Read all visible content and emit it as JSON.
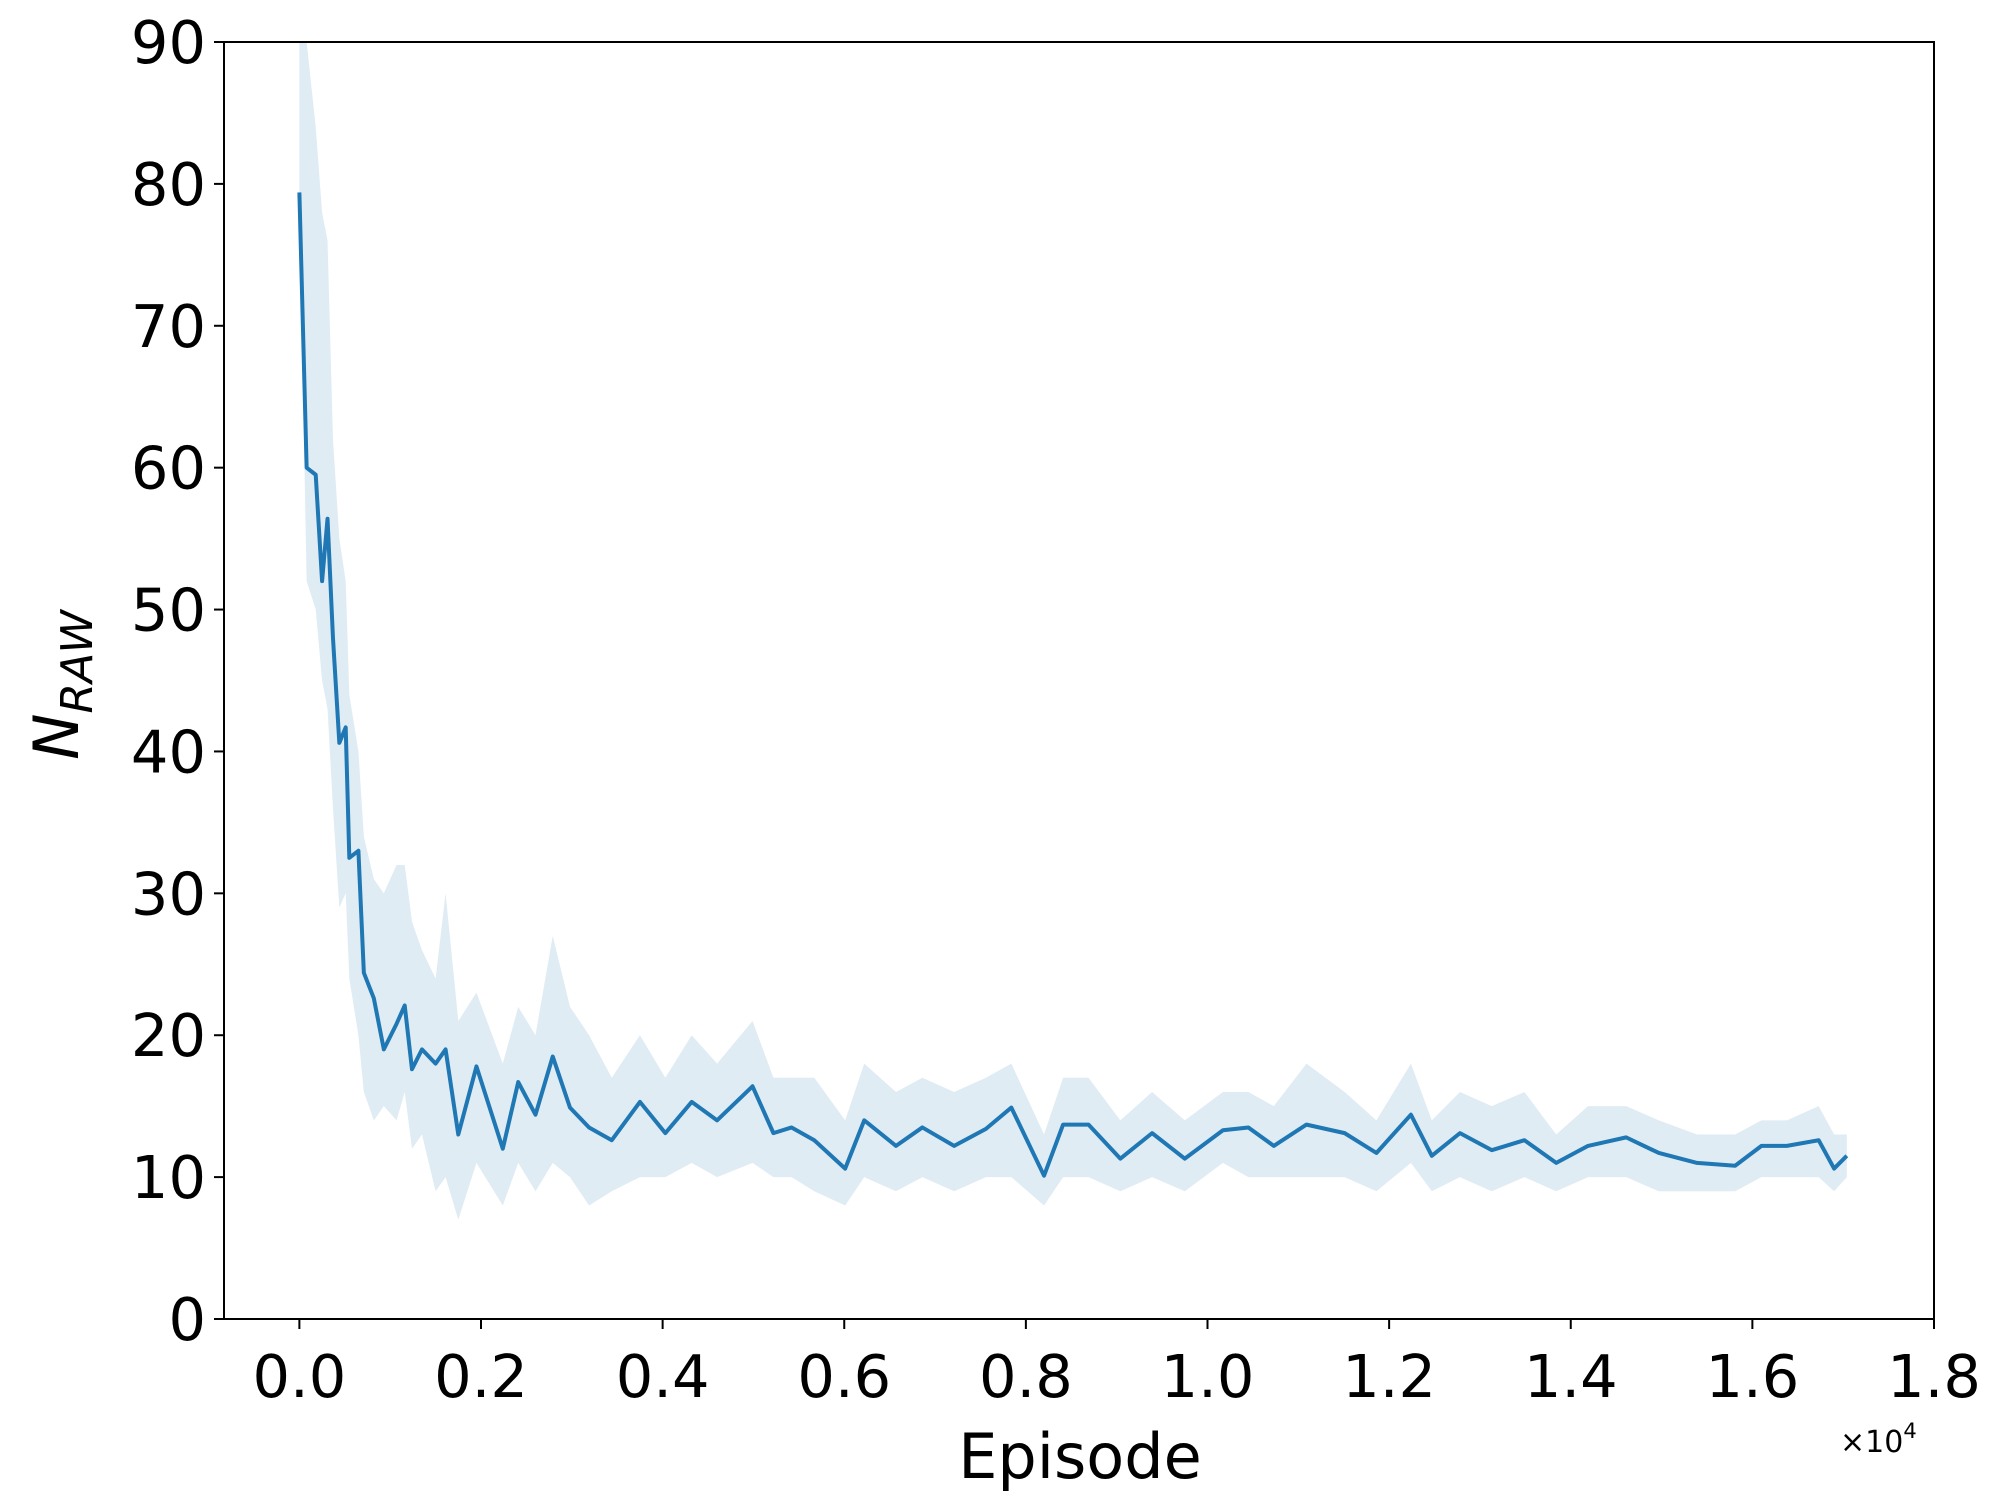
{
  "chart_data": {
    "type": "line",
    "ylabel": "N",
    "ylabel_sub": "RAW",
    "xlabel": "Episode",
    "x_offset": {
      "base": "×10",
      "exp": "4"
    },
    "xlim": [
      -0.083,
      1.8
    ],
    "ylim": [
      0,
      90
    ],
    "xticks": [
      {
        "value": 0,
        "label": "0.0"
      },
      {
        "value": 0.2,
        "label": "0.2"
      },
      {
        "value": 0.4,
        "label": "0.4"
      },
      {
        "value": 0.6,
        "label": "0.6"
      },
      {
        "value": 0.8,
        "label": "0.8"
      },
      {
        "value": 1.0,
        "label": "1.0"
      },
      {
        "value": 1.2,
        "label": "1.2"
      },
      {
        "value": 1.4,
        "label": "1.4"
      },
      {
        "value": 1.6,
        "label": "1.6"
      },
      {
        "value": 1.8,
        "label": "1.8"
      }
    ],
    "yticks": [
      0,
      10,
      20,
      30,
      40,
      50,
      60,
      70,
      80,
      90
    ],
    "x": [
      0,
      0.008,
      0.018,
      0.025,
      0.031,
      0.037,
      0.044,
      0.051,
      0.055,
      0.065,
      0.071,
      0.082,
      0.093,
      0.107,
      0.116,
      0.124,
      0.135,
      0.15,
      0.161,
      0.175,
      0.195,
      0.224,
      0.241,
      0.26,
      0.279,
      0.298,
      0.319,
      0.344,
      0.375,
      0.403,
      0.432,
      0.46,
      0.499,
      0.522,
      0.542,
      0.567,
      0.601,
      0.622,
      0.657,
      0.686,
      0.721,
      0.756,
      0.784,
      0.82,
      0.841,
      0.869,
      0.904,
      0.939,
      0.975,
      1.017,
      1.045,
      1.073,
      1.109,
      1.151,
      1.186,
      1.224,
      1.247,
      1.278,
      1.313,
      1.349,
      1.384,
      1.419,
      1.461,
      1.497,
      1.539,
      1.581,
      1.61,
      1.638,
      1.673,
      1.69,
      1.704
    ],
    "series": [
      {
        "color": "#1f77b4",
        "values": [
          79.4,
          60,
          59.5,
          52,
          56.4,
          48,
          40.6,
          41.7,
          32.5,
          33,
          24.4,
          22.6,
          19,
          20.8,
          22.1,
          17.6,
          19,
          18,
          19,
          13,
          17.8,
          12,
          16.7,
          14.4,
          18.5,
          14.9,
          13.5,
          12.6,
          15.3,
          13.1,
          15.3,
          14,
          16.4,
          13.1,
          13.5,
          12.6,
          10.6,
          14,
          12.2,
          13.5,
          12.2,
          13.4,
          14.9,
          10.1,
          13.7,
          13.7,
          11.3,
          13.1,
          11.3,
          13.3,
          13.5,
          12.2,
          13.7,
          13.1,
          11.7,
          14.4,
          11.5,
          13.1,
          11.9,
          12.6,
          11,
          12.2,
          12.8,
          11.7,
          11,
          10.8,
          12.2,
          12.2,
          12.6,
          10.6,
          11.5
        ],
        "lower": [
          79,
          52,
          50,
          45,
          43,
          36,
          29,
          30,
          24,
          20,
          16,
          14,
          15,
          14,
          16,
          12,
          13,
          9,
          10,
          7,
          11,
          8,
          11,
          9,
          11,
          10,
          8,
          9,
          10,
          10,
          11,
          10,
          11,
          10,
          10,
          9,
          8,
          10,
          9,
          10,
          9,
          10,
          10,
          8,
          10,
          10,
          9,
          10,
          9,
          11,
          10,
          10,
          10,
          10,
          9,
          11,
          9,
          10,
          9,
          10,
          9,
          10,
          10,
          9,
          9,
          9,
          10,
          10,
          10,
          9,
          10
        ],
        "upper": [
          90,
          90,
          84,
          78,
          76,
          62,
          55,
          52,
          44,
          40,
          34,
          31,
          30,
          32,
          32,
          28,
          26,
          24,
          30,
          21,
          23,
          18,
          22,
          20,
          27,
          22,
          20,
          17,
          20,
          17,
          20,
          18,
          21,
          17,
          17,
          17,
          14,
          18,
          16,
          17,
          16,
          17,
          18,
          13,
          17,
          17,
          14,
          16,
          14,
          16,
          16,
          15,
          18,
          16,
          14,
          18,
          14,
          16,
          15,
          16,
          13,
          15,
          15,
          14,
          13,
          13,
          14,
          14,
          15,
          13,
          13
        ]
      }
    ]
  }
}
